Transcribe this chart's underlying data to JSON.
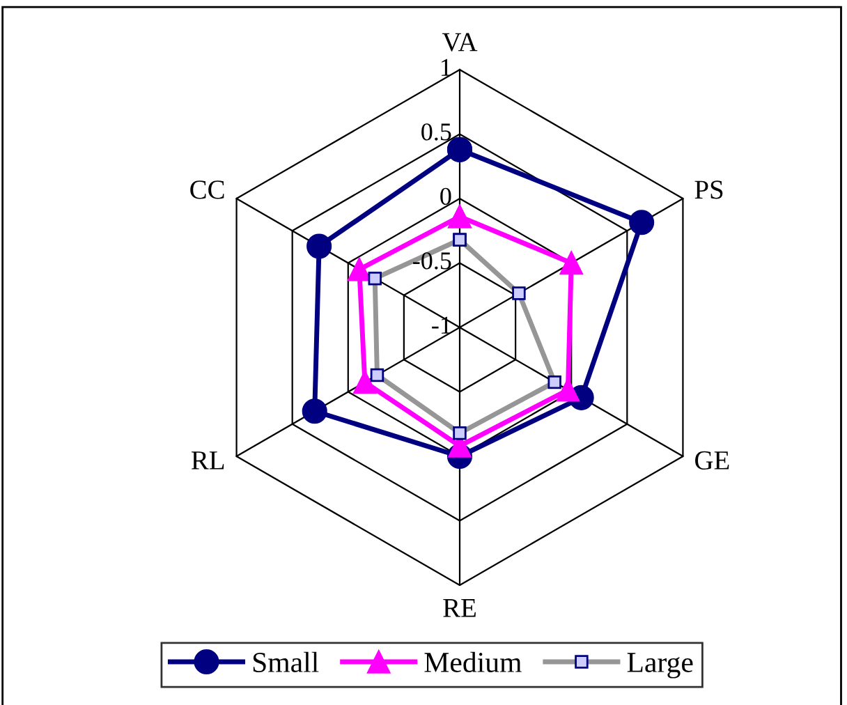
{
  "chart_data": {
    "type": "radar",
    "categories": [
      "VA",
      "PS",
      "GE",
      "RE",
      "RL",
      "CC"
    ],
    "ylim": [
      -1,
      1
    ],
    "yticks": [
      -1,
      -0.5,
      0,
      0.5,
      1
    ],
    "grid": true,
    "legend": "bottom",
    "series": [
      {
        "name": "Small",
        "color": "#000080",
        "marker": "circle",
        "values": [
          0.38,
          0.63,
          0.09,
          0.0,
          0.3,
          0.26
        ]
      },
      {
        "name": "Medium",
        "color": "#ff00ff",
        "marker": "triangle",
        "values": [
          -0.14,
          0.0,
          -0.03,
          -0.08,
          -0.15,
          -0.1
        ]
      },
      {
        "name": "Large",
        "color": "#969696",
        "marker": "square",
        "values": [
          -0.32,
          -0.47,
          -0.15,
          -0.18,
          -0.26,
          -0.24
        ]
      }
    ]
  }
}
